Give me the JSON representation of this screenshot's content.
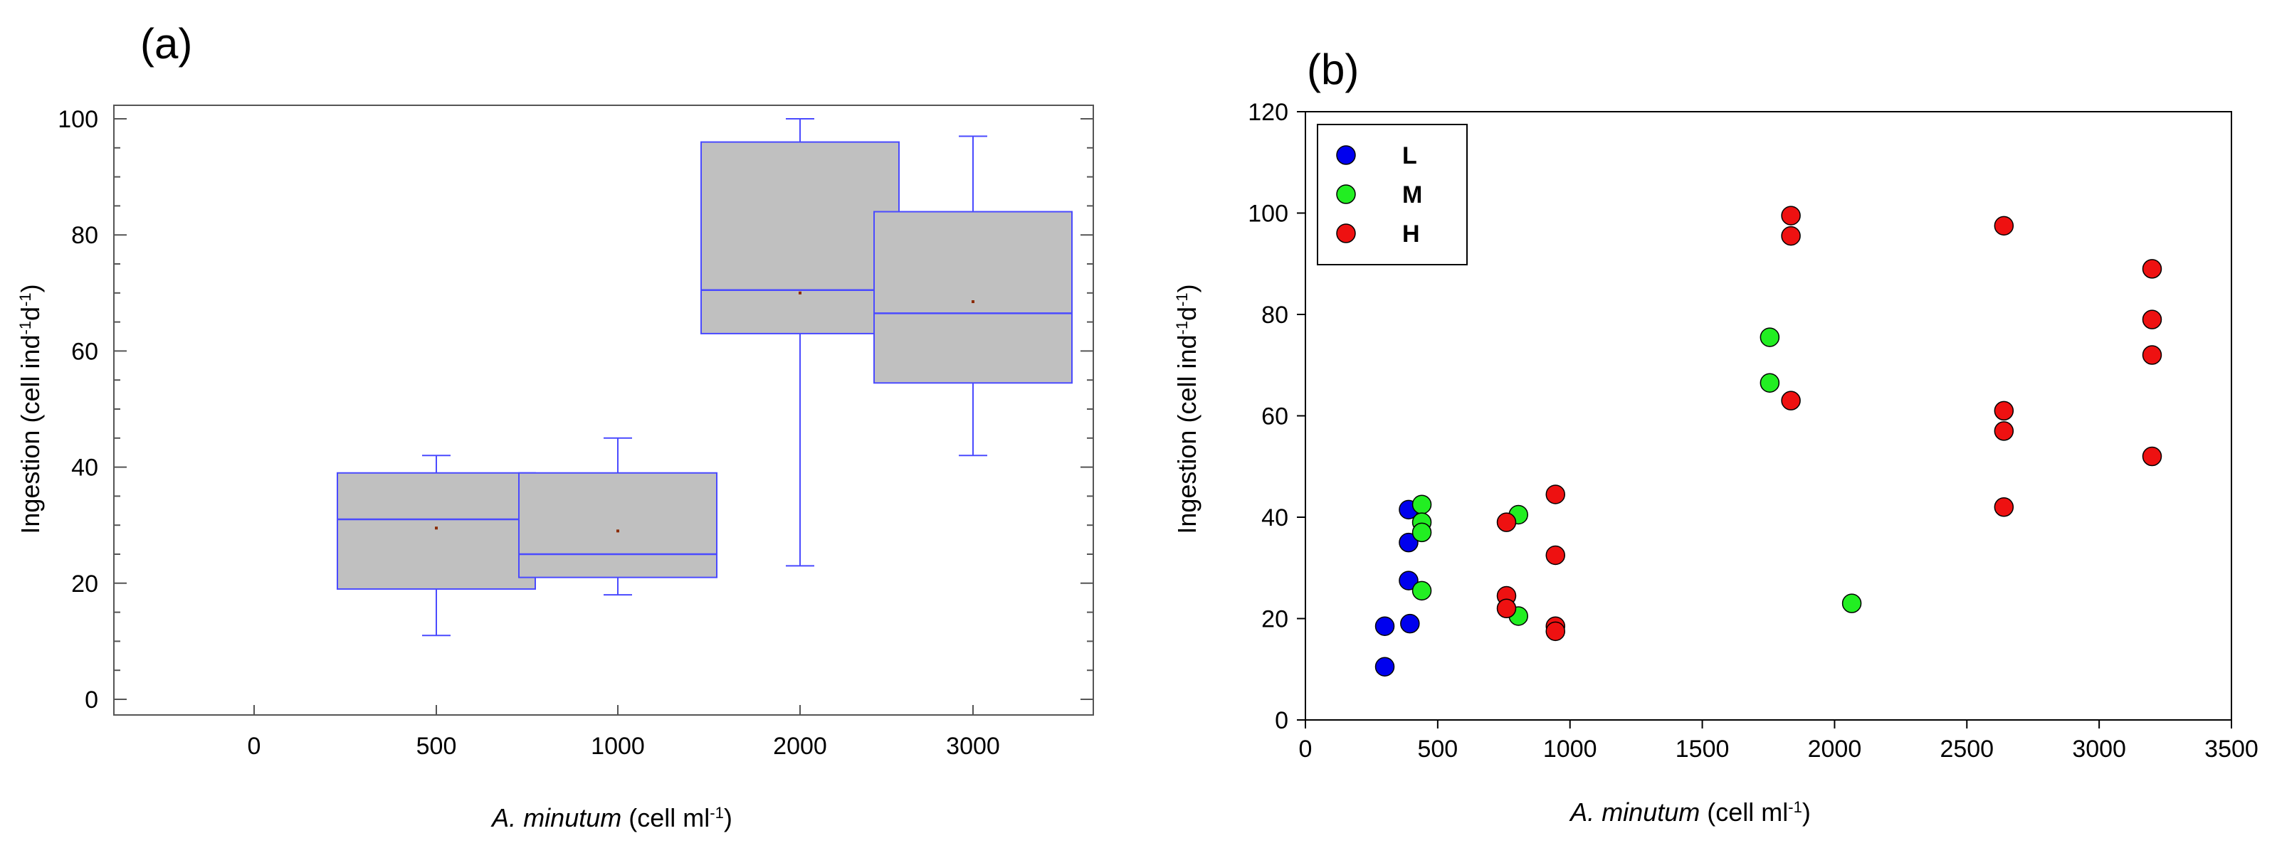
{
  "figure": {
    "panels": [
      "(a)",
      "(b)"
    ]
  },
  "chart_data": [
    {
      "panel": "(a)",
      "type": "box",
      "xlabel_italic": "A. minutum",
      "xlabel_unit": "(cell ml",
      "xlabel_sup": "-1",
      "xlabel_close": ")",
      "ylabel": "Ingestion (cell ind",
      "ylabel_sup1": "-1",
      "ylabel_mid": "d",
      "ylabel_sup2": "-1",
      "ylabel_close": ")",
      "ylim": [
        -3,
        103
      ],
      "yticks": [
        0,
        20,
        40,
        60,
        80,
        100
      ],
      "categories": [
        "0",
        "500",
        "1000",
        "2000",
        "3000"
      ],
      "boxes": [
        null,
        {
          "min": 11,
          "q1": 19,
          "median": 31,
          "q3": 39,
          "max": 42,
          "mean": 29.5
        },
        {
          "min": 18,
          "q1": 21,
          "median": 25,
          "q3": 39,
          "max": 45,
          "mean": 29
        },
        {
          "min": 23,
          "q1": 63,
          "median": 70.5,
          "q3": 96,
          "max": 100,
          "mean": 70
        },
        {
          "min": 42,
          "q1": 54.5,
          "median": 66.5,
          "q3": 84,
          "max": 97,
          "mean": 68.5
        }
      ],
      "colors": {
        "box_fill": "#c0c0c0",
        "box_edge": "#4a4aff",
        "mean_marker": "#8b2a00"
      }
    },
    {
      "panel": "(b)",
      "type": "scatter",
      "xlabel_italic": "A. minutum",
      "xlabel_unit": "(cell ml",
      "xlabel_sup": "-1",
      "xlabel_close": ")",
      "ylabel": "Ingestion (cell ind",
      "ylabel_sup1": "-1",
      "ylabel_mid": "d",
      "ylabel_sup2": "-1",
      "ylabel_close": ")",
      "xlim": [
        0,
        3500
      ],
      "ylim": [
        0,
        120
      ],
      "xticks": [
        0,
        500,
        1000,
        1500,
        2000,
        2500,
        3000,
        3500
      ],
      "yticks": [
        0,
        20,
        40,
        60,
        80,
        100,
        120
      ],
      "legend_position": "top-left",
      "series": [
        {
          "name": "L",
          "color": "#0000ee",
          "points": [
            [
              300,
              10.5
            ],
            [
              300,
              18.5
            ],
            [
              390,
              41.5
            ],
            [
              390,
              35
            ],
            [
              390,
              27.5
            ],
            [
              395,
              19
            ]
          ]
        },
        {
          "name": "M",
          "color": "#22ee22",
          "points": [
            [
              440,
              42.5
            ],
            [
              440,
              39
            ],
            [
              440,
              37
            ],
            [
              440,
              25.5
            ],
            [
              805,
              40.5
            ],
            [
              805,
              20.5
            ],
            [
              1755,
              75.5
            ],
            [
              1755,
              66.5
            ],
            [
              2065,
              23
            ]
          ]
        },
        {
          "name": "H",
          "color": "#ee1111",
          "points": [
            [
              760,
              39
            ],
            [
              760,
              24.5
            ],
            [
              760,
              22
            ],
            [
              945,
              44.5
            ],
            [
              945,
              32.5
            ],
            [
              945,
              18.5
            ],
            [
              945,
              17.5
            ],
            [
              1835,
              99.5
            ],
            [
              1835,
              95.5
            ],
            [
              1835,
              63
            ],
            [
              2640,
              97.5
            ],
            [
              2640,
              61
            ],
            [
              2640,
              57
            ],
            [
              2640,
              42
            ],
            [
              3200,
              89
            ],
            [
              3200,
              79
            ],
            [
              3200,
              72
            ],
            [
              3200,
              52
            ]
          ]
        }
      ]
    }
  ]
}
